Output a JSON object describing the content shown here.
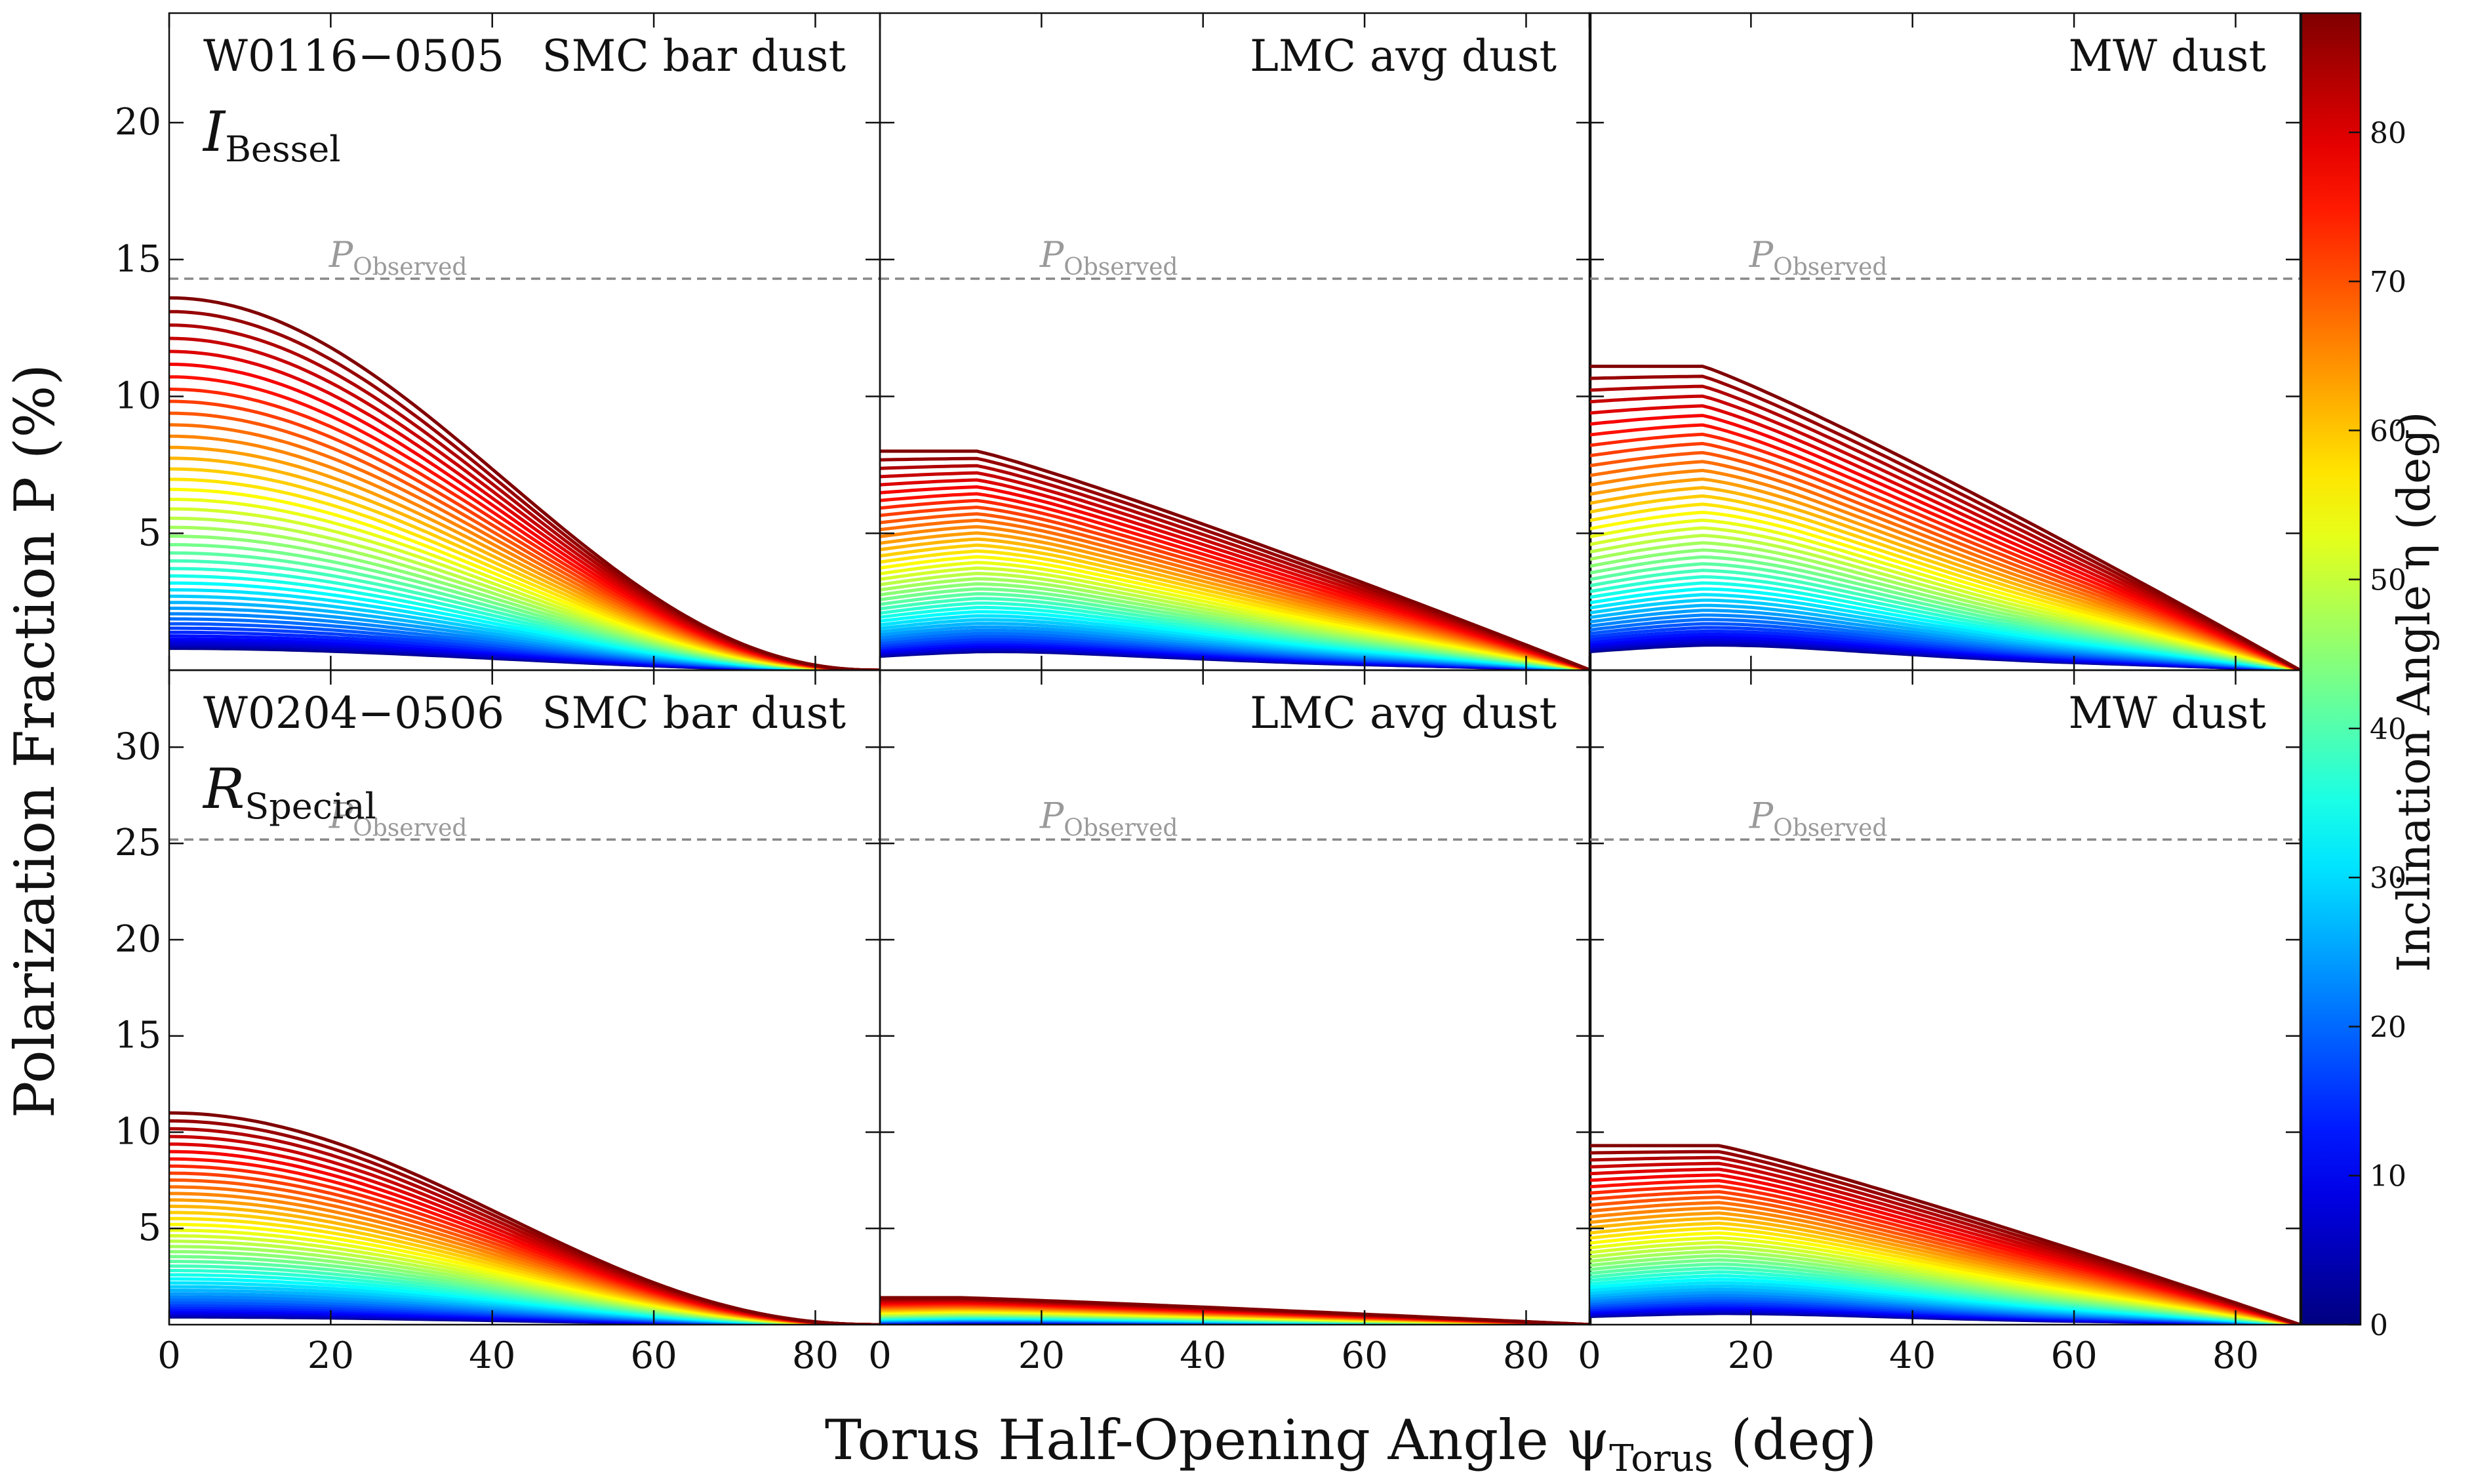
{
  "figure": {
    "xlabel": "Torus Half-Opening Angle ψ",
    "xlabel_sub": "Torus",
    "xlabel_unit": " (deg)",
    "ylabel": "Polarization Fraction P (%)",
    "colorbar_label": "Inclination Angle η (deg)",
    "colorbar_ticks": [
      "0",
      "10",
      "20",
      "30",
      "40",
      "50",
      "60",
      "70",
      "80"
    ],
    "colormap": "jet",
    "colormap_range": [
      0,
      88
    ],
    "observed_label": "P",
    "observed_label_sub": "Observed",
    "reference_line_color": "#888888"
  },
  "chart_data": [
    {
      "type": "line",
      "object": "W0116−0505",
      "band": "I",
      "band_sub": "Bessel",
      "dust": "SMC bar dust",
      "xlim": [
        0,
        88
      ],
      "ylim": [
        0,
        24
      ],
      "xticks": [
        0,
        20,
        40,
        60,
        80
      ],
      "yticks": [
        5,
        10,
        15,
        20
      ],
      "p_observed": 14.3,
      "curve_family": {
        "series_count": 44,
        "eta_range": [
          0,
          88
        ],
        "peak_low_eta": 0.8,
        "peak_high_eta": 13.6,
        "shape": "smooth",
        "hump_x": 0,
        "plateau": 0
      }
    },
    {
      "type": "line",
      "object": "",
      "band": "",
      "band_sub": "",
      "dust": "LMC avg dust",
      "xlim": [
        0,
        88
      ],
      "ylim": [
        0,
        24
      ],
      "xticks": [
        0,
        20,
        40,
        60,
        80
      ],
      "yticks": [
        5,
        10,
        15,
        20
      ],
      "p_observed": 14.3,
      "curve_family": {
        "series_count": 44,
        "eta_range": [
          0,
          88
        ],
        "peak_low_eta": 0.6,
        "peak_high_eta": 8.0,
        "shape": "shoulder",
        "hump_x": 12,
        "plateau": 0.45
      }
    },
    {
      "type": "line",
      "object": "",
      "band": "",
      "band_sub": "",
      "dust": "MW dust",
      "xlim": [
        0,
        88
      ],
      "ylim": [
        0,
        24
      ],
      "xticks": [
        0,
        20,
        40,
        60,
        80
      ],
      "yticks": [
        5,
        10,
        15,
        20
      ],
      "p_observed": 14.3,
      "curve_family": {
        "series_count": 44,
        "eta_range": [
          0,
          88
        ],
        "peak_low_eta": 0.8,
        "peak_high_eta": 11.1,
        "shape": "shoulder",
        "hump_x": 14,
        "plateau": 0.5
      }
    },
    {
      "type": "line",
      "object": "W0204−0506",
      "band": "R",
      "band_sub": "Special",
      "dust": "SMC bar dust",
      "xlim": [
        0,
        88
      ],
      "ylim": [
        0,
        34
      ],
      "xticks": [
        0,
        20,
        40,
        60,
        80
      ],
      "yticks": [
        5,
        10,
        15,
        20,
        25,
        30
      ],
      "p_observed": 25.2,
      "curve_family": {
        "series_count": 44,
        "eta_range": [
          0,
          88
        ],
        "peak_low_eta": 0.4,
        "peak_high_eta": 11.0,
        "shape": "smooth",
        "hump_x": 0,
        "plateau": 0
      }
    },
    {
      "type": "line",
      "object": "",
      "band": "",
      "band_sub": "",
      "dust": "LMC avg dust",
      "xlim": [
        0,
        88
      ],
      "ylim": [
        0,
        34
      ],
      "xticks": [
        0,
        20,
        40,
        60,
        80
      ],
      "yticks": [
        5,
        10,
        15,
        20,
        25,
        30
      ],
      "p_observed": 25.2,
      "curve_family": {
        "series_count": 44,
        "eta_range": [
          0,
          88
        ],
        "peak_low_eta": 0.1,
        "peak_high_eta": 1.4,
        "shape": "shoulder",
        "hump_x": 10,
        "plateau": 0.4
      }
    },
    {
      "type": "line",
      "object": "",
      "band": "",
      "band_sub": "",
      "dust": "MW dust",
      "xlim": [
        0,
        88
      ],
      "ylim": [
        0,
        34
      ],
      "xticks": [
        0,
        20,
        40,
        60,
        80
      ],
      "yticks": [
        5,
        10,
        15,
        20,
        25,
        30
      ],
      "p_observed": 25.2,
      "curve_family": {
        "series_count": 44,
        "eta_range": [
          0,
          88
        ],
        "peak_low_eta": 0.5,
        "peak_high_eta": 9.3,
        "shape": "shoulder",
        "hump_x": 16,
        "plateau": 0.55
      }
    }
  ]
}
